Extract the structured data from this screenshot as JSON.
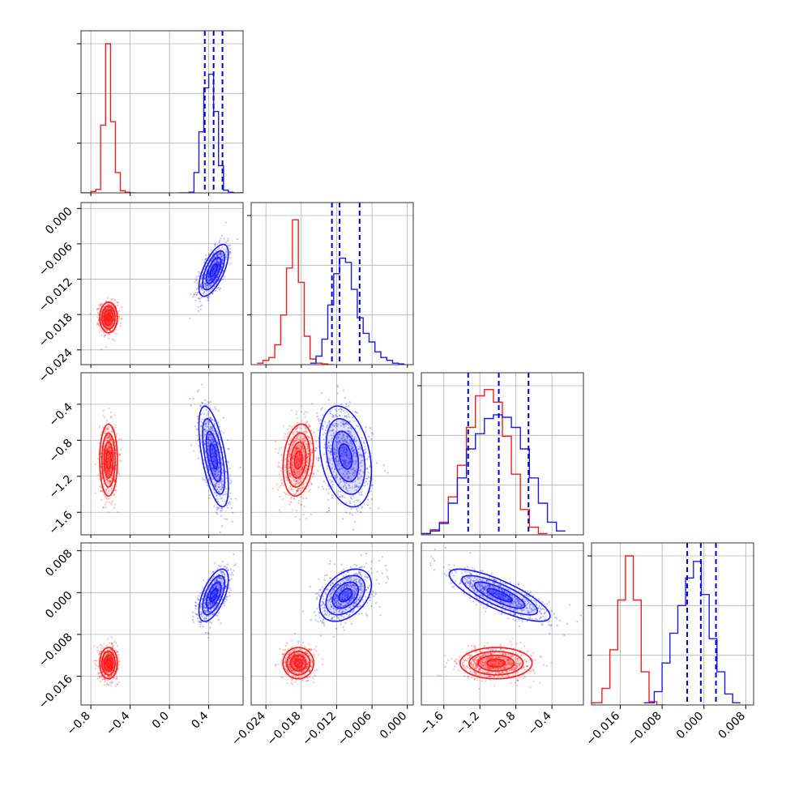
{
  "chart_data": {
    "type": "corner",
    "n_params": 4,
    "colors": {
      "red": "#ff1a1a",
      "blue": "#1a1aff",
      "quantile": "#0000dd",
      "grid": "#b0b0b0"
    },
    "grid": true,
    "quantile_lines_series": "blue",
    "axes": [
      {
        "index": 0,
        "range": [
          -0.9,
          0.75
        ],
        "ticks": [
          -0.8,
          -0.4,
          0.0,
          0.4
        ],
        "tick_labels": [
          "−0.8",
          "−0.4",
          "0.0",
          "0.4"
        ]
      },
      {
        "index": 1,
        "range": [
          -0.0265,
          0.001
        ],
        "ticks": [
          -0.024,
          -0.018,
          -0.012,
          -0.006,
          0.0
        ],
        "tick_labels": [
          "−0.024",
          "−0.018",
          "−0.012",
          "−0.006",
          "0.000"
        ]
      },
      {
        "index": 2,
        "range": [
          -1.85,
          -0.05
        ],
        "ticks": [
          -1.6,
          -1.2,
          -0.8,
          -0.4
        ],
        "tick_labels": [
          "−1.6",
          "−1.2",
          "−0.8",
          "−0.4"
        ]
      },
      {
        "index": 3,
        "range": [
          -0.0215,
          0.0095
        ],
        "ticks": [
          -0.016,
          -0.008,
          0.0,
          0.008
        ],
        "tick_labels": [
          "−0.016",
          "−0.008",
          "0.000",
          "0.008"
        ]
      }
    ],
    "diag_ymax": [
      2.2,
      1.05,
      1.18,
      1.35
    ],
    "series": [
      {
        "name": "red",
        "color": "#ff1a1a",
        "mean": [
          -0.62,
          -0.0185,
          -1.02,
          -0.0135
        ],
        "sd": [
          0.045,
          0.0013,
          0.2,
          0.0015
        ],
        "corr": {
          "0-1": 0.0,
          "0-2": 0.0,
          "0-3": 0.0,
          "1-2": 0.2,
          "1-3": 0.0,
          "2-3": 0.0
        },
        "histograms": [
          {
            "edges": [
              -0.9,
              -0.8,
              -0.75,
              -0.7,
              -0.65,
              -0.6,
              -0.55,
              -0.5,
              -0.45,
              -0.4,
              -0.35
            ],
            "counts": [
              0,
              0.02,
              0.05,
              1.0,
              2.2,
              1.05,
              0.3,
              0.03,
              0.01,
              0
            ]
          },
          {
            "edges": [
              -0.0255,
              -0.0245,
              -0.0235,
              -0.0225,
              -0.0215,
              -0.0205,
              -0.0195,
              -0.0185,
              -0.0175,
              -0.0165,
              -0.0155,
              -0.0145,
              -0.0135,
              -0.0125
            ],
            "counts": [
              0.01,
              0.03,
              0.05,
              0.14,
              0.35,
              0.68,
              1.02,
              0.58,
              0.2,
              0.04,
              0.01,
              0.005,
              0
            ]
          },
          {
            "edges": [
              -1.85,
              -1.75,
              -1.65,
              -1.55,
              -1.45,
              -1.35,
              -1.25,
              -1.15,
              -1.05,
              -0.95,
              -0.85,
              -0.75,
              -0.65,
              -0.55,
              -0.45
            ],
            "counts": [
              0.01,
              0.04,
              0.1,
              0.3,
              0.55,
              0.85,
              1.1,
              1.15,
              1.05,
              0.78,
              0.48,
              0.2,
              0.06,
              0.01
            ]
          },
          {
            "edges": [
              -0.0215,
              -0.0195,
              -0.018,
              -0.0165,
              -0.015,
              -0.0135,
              -0.012,
              -0.0105,
              -0.009,
              -0.0075
            ],
            "counts": [
              0.02,
              0.15,
              0.5,
              0.95,
              1.35,
              0.95,
              0.3,
              0.03,
              0
            ]
          }
        ]
      },
      {
        "name": "blue",
        "color": "#1a1aff",
        "mean": [
          0.45,
          -0.0105,
          -0.98,
          -0.0005
        ],
        "sd": [
          0.075,
          0.0022,
          0.28,
          0.0025
        ],
        "corr": {
          "0-1": 0.65,
          "0-2": -0.6,
          "0-3": 0.6,
          "1-2": -0.3,
          "1-3": 0.4,
          "2-3": -0.8
        },
        "quantiles": [
          [
            0.36,
            0.45,
            0.54
          ],
          [
            -0.0128,
            -0.0115,
            -0.0081
          ],
          [
            -1.33,
            -0.99,
            -0.66
          ],
          [
            -0.0032,
            -0.0006,
            0.0023
          ]
        ],
        "histograms": [
          {
            "edges": [
              0.1,
              0.2,
              0.25,
              0.3,
              0.35,
              0.4,
              0.45,
              0.5,
              0.55,
              0.6,
              0.65,
              0.75
            ],
            "counts": [
              0,
              0.01,
              0.3,
              0.9,
              1.55,
              1.75,
              1.2,
              0.4,
              0.04,
              0.01,
              0
            ]
          },
          {
            "edges": [
              -0.0165,
              -0.0155,
              -0.0145,
              -0.0135,
              -0.0125,
              -0.0115,
              -0.0105,
              -0.0095,
              -0.0085,
              -0.0075,
              -0.0065,
              -0.0055,
              -0.0045,
              -0.0035,
              -0.0025,
              -0.0015,
              -0.0005
            ],
            "counts": [
              0.01,
              0.06,
              0.18,
              0.42,
              0.64,
              0.75,
              0.72,
              0.53,
              0.33,
              0.22,
              0.16,
              0.09,
              0.05,
              0.03,
              0.01,
              0.005
            ]
          },
          {
            "edges": [
              -1.85,
              -1.75,
              -1.65,
              -1.55,
              -1.45,
              -1.35,
              -1.25,
              -1.15,
              -1.05,
              -0.95,
              -0.85,
              -0.75,
              -0.65,
              -0.55,
              -0.45,
              -0.35,
              -0.25
            ],
            "counts": [
              0.01,
              0.03,
              0.09,
              0.25,
              0.45,
              0.68,
              0.8,
              0.92,
              0.95,
              0.93,
              0.85,
              0.68,
              0.45,
              0.25,
              0.1,
              0.03
            ]
          },
          {
            "edges": [
              -0.0115,
              -0.0095,
              -0.008,
              -0.0065,
              -0.005,
              -0.0035,
              -0.002,
              -0.0005,
              0.001,
              0.0025,
              0.004,
              0.0055,
              0.007
            ],
            "counts": [
              0.02,
              0.12,
              0.38,
              0.65,
              0.9,
              1.15,
              1.3,
              1.0,
              0.6,
              0.3,
              0.1,
              0.02
            ]
          }
        ]
      }
    ]
  }
}
